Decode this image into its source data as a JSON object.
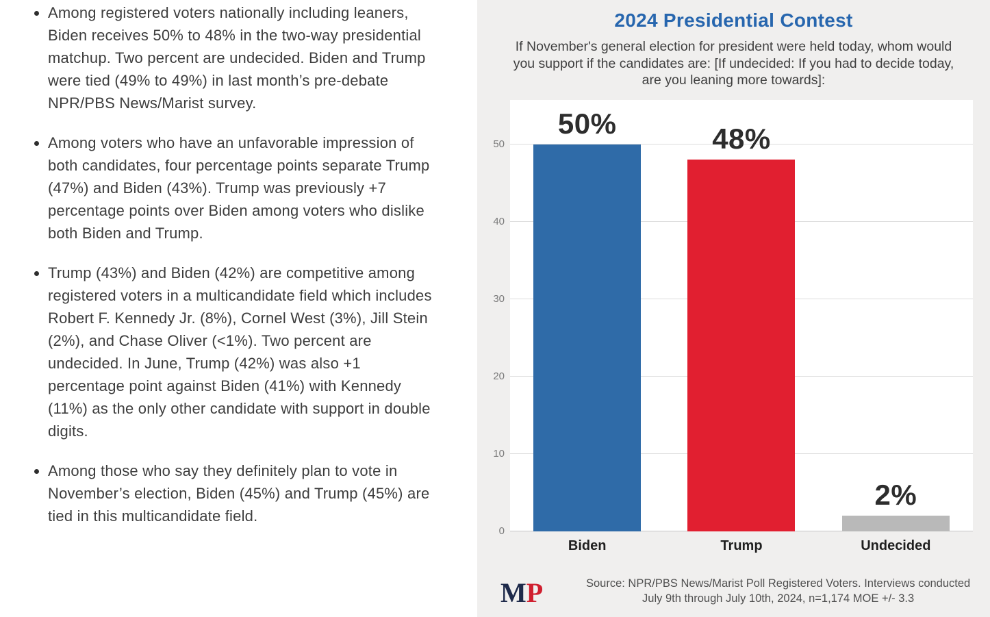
{
  "bullets": [
    "Among registered voters nationally including leaners, Biden receives 50% to 48% in the two-way presidential matchup. Two percent are undecided. Biden and Trump were tied (49% to 49%) in last month’s pre-debate NPR/PBS News/Marist survey.",
    "Among voters who have an unfavorable impression of both candidates, four percentage points separate Trump (47%) and Biden (43%). Trump was previously +7 percentage points over Biden among voters who dislike both Biden and Trump.",
    "Trump (43%) and Biden (42%) are competitive among registered voters in a multicandidate field which includes Robert F. Kennedy Jr. (8%), Cornel West (3%), Jill Stein (2%), and Chase Oliver (<1%). Two percent are undecided. In June, Trump (42%) was also +1 percentage point against Biden (41%) with Kennedy (11%) as the only other candidate with support in double digits.",
    "Among those who say they definitely plan to vote in November’s election, Biden (45%) and Trump (45%) are tied in this multicandidate field."
  ],
  "chart": {
    "title": "2024 Presidential Contest",
    "subtitle": "If November's general election for president were held today, whom would you support if the candidates are: [If undecided: If you had to decide today, are you leaning more towards]:",
    "source": "Source: NPR/PBS News/Marist Poll Registered Voters. Interviews conducted July 9th through July 10th, 2024, n=1,174 MOE +/- 3.3",
    "logo_m": "M",
    "logo_p": "P",
    "title_color": "#2766ae"
  },
  "chart_data": {
    "type": "bar",
    "title": "2024 Presidential Contest",
    "categories": [
      "Biden",
      "Trump",
      "Undecided"
    ],
    "values": [
      50,
      48,
      2
    ],
    "value_labels": [
      "50%",
      "48%",
      "2%"
    ],
    "bar_colors": [
      "#2f6ba8",
      "#e11f30",
      "#b9b9b9"
    ],
    "xlabel": "",
    "ylabel": "",
    "ylim": [
      0,
      50
    ],
    "yticks": [
      0,
      10,
      20,
      30,
      40,
      50
    ],
    "grid": true,
    "legend": false
  }
}
